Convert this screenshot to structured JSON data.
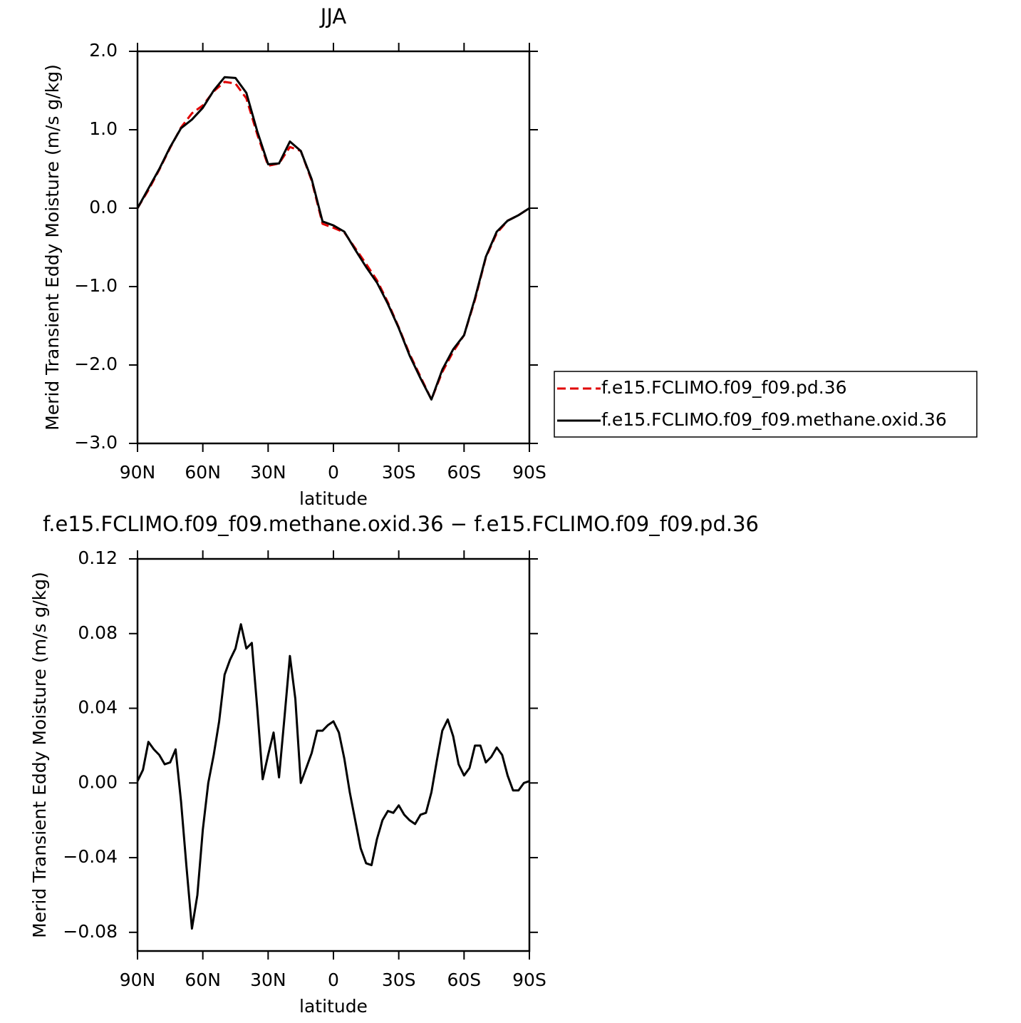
{
  "chart_data": [
    {
      "type": "line",
      "title": "JJA",
      "x_label": "latitude",
      "y_label": "Merid Transient Eddy Moisture (m/s g/kg)",
      "x": [
        90,
        85,
        80,
        75,
        70,
        65,
        60,
        55,
        50,
        45,
        40,
        35,
        30,
        25,
        20,
        15,
        10,
        5,
        0,
        -5,
        -10,
        -15,
        -20,
        -25,
        -30,
        -35,
        -40,
        -45,
        -50,
        -55,
        -60,
        -65,
        -70,
        -75,
        -80,
        -85,
        -90
      ],
      "series": [
        {
          "name": "f.e15.FCLIMO.f09_f09.pd.36",
          "color": "#e00000",
          "line_style": "dashed",
          "values": [
            0,
            0.23,
            0.49,
            0.77,
            1.03,
            1.21,
            1.31,
            1.49,
            1.61,
            1.59,
            1.4,
            0.94,
            0.54,
            0.57,
            0.78,
            0.73,
            0.35,
            -0.2,
            -0.25,
            -0.31,
            -0.51,
            -0.71,
            -0.92,
            -1.2,
            -1.52,
            -1.86,
            -2.15,
            -2.44,
            -2.09,
            -1.83,
            -1.62,
            -1.17,
            -0.63,
            -0.32,
            -0.16,
            -0.09,
            0
          ]
        },
        {
          "name": "f.e15.FCLIMO.f09_f09.methane.oxid.36",
          "color": "#000000",
          "line_style": "solid",
          "values": [
            0,
            0.25,
            0.5,
            0.78,
            1.02,
            1.13,
            1.28,
            1.5,
            1.67,
            1.66,
            1.47,
            0.98,
            0.56,
            0.57,
            0.85,
            0.73,
            0.37,
            -0.17,
            -0.22,
            -0.3,
            -0.53,
            -0.75,
            -0.95,
            -1.22,
            -1.53,
            -1.88,
            -2.17,
            -2.44,
            -2.06,
            -1.8,
            -1.62,
            -1.15,
            -0.62,
            -0.3,
            -0.16,
            -0.09,
            0
          ]
        }
      ],
      "xlim": [
        90,
        -90
      ],
      "xticks": [
        {
          "value": 90,
          "label": "90N"
        },
        {
          "value": 60,
          "label": "60N"
        },
        {
          "value": 30,
          "label": "30N"
        },
        0,
        {
          "value": -30,
          "label": "30S"
        },
        {
          "value": -60,
          "label": "60S"
        },
        {
          "value": -90,
          "label": "90S"
        }
      ],
      "ylim": [
        -3,
        2
      ],
      "yticks": [
        {
          "value": 2,
          "label": "2.0"
        },
        {
          "value": 1,
          "label": "1.0"
        },
        {
          "value": 0,
          "label": "0.0"
        },
        {
          "value": -1,
          "label": "−1.0"
        },
        {
          "value": -2,
          "label": "−2.0"
        },
        {
          "value": -3,
          "label": "−3.0"
        }
      ],
      "legend": "right"
    },
    {
      "type": "line",
      "title": "f.e15.FCLIMO.f09_f09.methane.oxid.36 − f.e15.FCLIMO.f09_f09.pd.36",
      "x_label": "latitude",
      "y_label": "Merid Transient Eddy Moisture (m/s g/kg)",
      "x": [
        90,
        87.5,
        85,
        82.5,
        80,
        77.5,
        75,
        72.5,
        70,
        67.5,
        65,
        62.5,
        60,
        57.5,
        55,
        52.5,
        50,
        47.5,
        45,
        42.5,
        40,
        37.5,
        35,
        32.5,
        30,
        27.5,
        25,
        22.5,
        20,
        17.5,
        15,
        12.5,
        10,
        7.5,
        5,
        2.5,
        0,
        -2.5,
        -5,
        -7.5,
        -10,
        -12.5,
        -15,
        -17.5,
        -20,
        -22.5,
        -25,
        -27.5,
        -30,
        -32.5,
        -35,
        -37.5,
        -40,
        -42.5,
        -45,
        -47.5,
        -50,
        -52.5,
        -55,
        -57.5,
        -60,
        -62.5,
        -65,
        -67.5,
        -70,
        -72.5,
        -75,
        -77.5,
        -80,
        -82.5,
        -85,
        -87.5,
        -90
      ],
      "series": [
        {
          "color": "#000000",
          "line_style": "solid",
          "values": [
            0.001,
            0.007,
            0.022,
            0.018,
            0.015,
            0.01,
            0.011,
            0.018,
            -0.01,
            -0.045,
            -0.078,
            -0.06,
            -0.025,
            0,
            0.015,
            0.033,
            0.058,
            0.066,
            0.072,
            0.085,
            0.072,
            0.075,
            0.04,
            0.002,
            0.015,
            0.027,
            0.003,
            0.035,
            0.068,
            0.045,
            0,
            0.008,
            0.016,
            0.028,
            0.028,
            0.031,
            0.033,
            0.027,
            0.013,
            -0.005,
            -0.02,
            -0.035,
            -0.043,
            -0.044,
            -0.03,
            -0.02,
            -0.015,
            -0.016,
            -0.012,
            -0.017,
            -0.02,
            -0.022,
            -0.017,
            -0.016,
            -0.005,
            0.012,
            0.028,
            0.034,
            0.025,
            0.01,
            0.004,
            0.008,
            0.02,
            0.02,
            0.011,
            0.014,
            0.019,
            0.015,
            0.004,
            -0.004,
            -0.004,
            0,
            0.001
          ]
        }
      ],
      "xlim": [
        90,
        -90
      ],
      "xticks": [
        {
          "value": 90,
          "label": "90N"
        },
        {
          "value": 60,
          "label": "60N"
        },
        {
          "value": 30,
          "label": "30N"
        },
        0,
        {
          "value": -30,
          "label": "30S"
        },
        {
          "value": -60,
          "label": "60S"
        },
        {
          "value": -90,
          "label": "90S"
        }
      ],
      "ylim": [
        -0.09,
        0.12
      ],
      "yticks": [
        0.12,
        0.08,
        0.04,
        {
          "value": 0,
          "label": "0.00"
        },
        {
          "value": -0.04,
          "label": "−0.04"
        },
        {
          "value": -0.08,
          "label": "−0.08"
        }
      ]
    }
  ]
}
